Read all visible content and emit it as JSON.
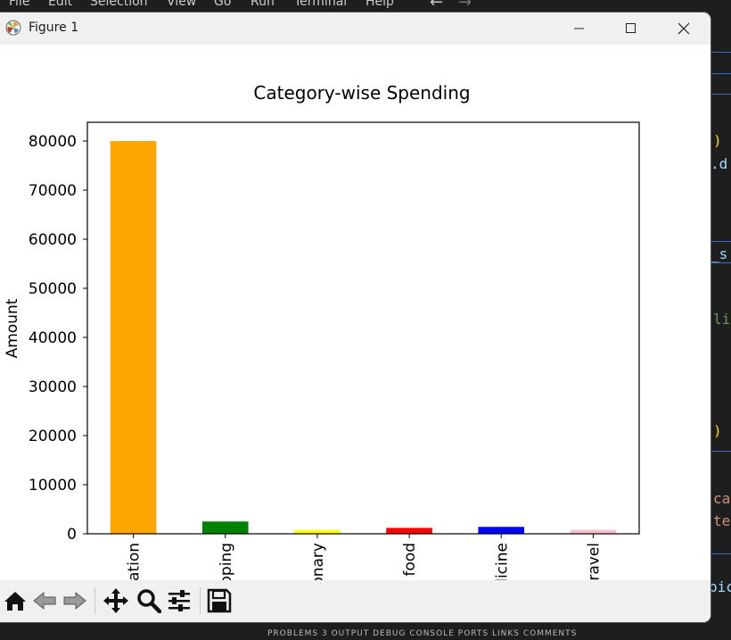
{
  "background_app": {
    "menu": [
      "File",
      "Edit",
      "Selection",
      "View",
      "Go",
      "Run",
      "Terminal",
      "Help"
    ],
    "code_fragments": [
      {
        "text": ")",
        "color": "#ffd700"
      },
      {
        "text": ".d",
        "color": "#9cdcfe"
      },
      {
        "text": "_s",
        "color": "#9cdcfe"
      },
      {
        "text": "li",
        "color": "#6a9955"
      },
      {
        "text": ")",
        "color": "#ffd700"
      },
      {
        "text": "ca",
        "color": "#ce9178"
      },
      {
        "text": "te",
        "color": "#ce9178"
      },
      {
        "text": "pic",
        "color": "#9cdcfe"
      }
    ],
    "panel_tabs": "PROBLEMS   3   OUTPUT   DEBUG CONSOLE   PORTS   LINKS   COMMENTS"
  },
  "window": {
    "title": "Figure 1",
    "icon": "matplotlib-icon",
    "controls": [
      "minimize-icon",
      "maximize-icon",
      "close-icon"
    ]
  },
  "toolbar": {
    "tools": [
      "home-icon",
      "back-icon",
      "forward-icon",
      "pan-icon",
      "zoom-icon",
      "configure-subplots-icon",
      "save-icon"
    ]
  },
  "chart_data": {
    "type": "bar",
    "title": "Category-wise Spending",
    "xlabel": "",
    "ylabel": "Amount",
    "categories": [
      "cation",
      "pping",
      "onary",
      "food",
      "dicine",
      "travel"
    ],
    "values": [
      80000,
      2500,
      800,
      1200,
      1400,
      800
    ],
    "colors": [
      "#ffa500",
      "#008000",
      "#ffff00",
      "#ff0000",
      "#0000ff",
      "#ffc0cb"
    ],
    "ylim": [
      0,
      84000
    ],
    "yticks": [
      0,
      10000,
      20000,
      30000,
      40000,
      50000,
      60000,
      70000,
      80000
    ],
    "grid": false,
    "legend": "none"
  }
}
